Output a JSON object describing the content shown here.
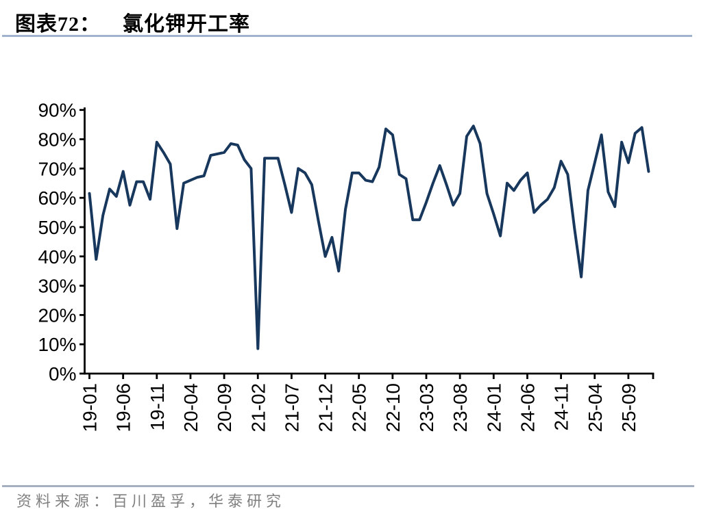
{
  "header": {
    "figure_label": "图表72：",
    "figure_title": "氯化钾开工率"
  },
  "footer": {
    "source_text": "资料来源：百川盈孚，华泰研究"
  },
  "colors": {
    "series": "#17375D",
    "axis": "#000000",
    "title_rule": "#9FB3CE",
    "footer_rule": "#A5AFC0",
    "footer_text": "#808080",
    "axis_label": "#000000"
  },
  "chart_data": {
    "type": "line",
    "title": "氯化钾开工率",
    "unit": "%",
    "x_start": "19-01",
    "x_frequency": "monthly",
    "x_tick_step_months": 5,
    "x_tick_labels": [
      "19-01",
      "19-06",
      "19-11",
      "20-04",
      "20-09",
      "21-02",
      "21-07",
      "21-12",
      "22-05",
      "22-10",
      "23-03",
      "23-08",
      "24-01",
      "24-06",
      "24-11",
      "25-04",
      "25-09"
    ],
    "y_tick_labels": [
      "0%",
      "10%",
      "20%",
      "30%",
      "40%",
      "50%",
      "60%",
      "70%",
      "80%",
      "90%"
    ],
    "ylim": [
      0,
      90
    ],
    "grid": false,
    "legend": "none",
    "values": [
      61.5,
      39,
      54,
      63,
      60.5,
      69,
      57.5,
      65.5,
      65.5,
      59.5,
      79,
      75.5,
      71.5,
      49.5,
      65,
      66,
      67,
      67.5,
      74.5,
      75,
      75.5,
      78.5,
      78,
      73,
      70,
      8.5,
      73.5,
      73.5,
      73.5,
      64.5,
      55,
      70,
      68.5,
      64.5,
      52,
      40,
      46.5,
      35,
      56,
      68.5,
      68.5,
      66,
      65.5,
      70.5,
      83.5,
      81.5,
      68,
      66.5,
      52.5,
      52.5,
      58.5,
      65,
      71,
      64.5,
      57.5,
      61.5,
      81,
      84.5,
      78.5,
      61.5,
      54.5,
      47,
      65,
      62.5,
      66,
      68.5,
      55,
      57.5,
      59.5,
      63.5,
      72.5,
      68,
      49.5,
      33,
      62.5,
      72,
      81.5,
      62,
      57,
      79,
      72,
      82,
      84,
      69
    ]
  }
}
